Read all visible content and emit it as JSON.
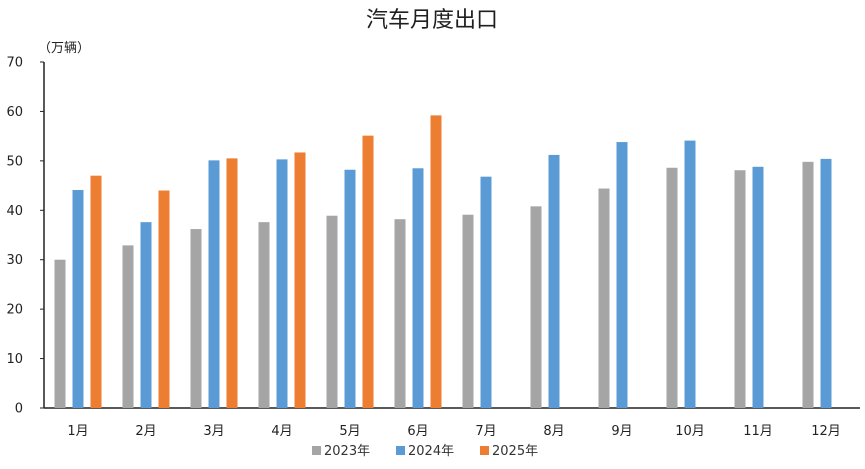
{
  "chart_data": {
    "type": "bar",
    "title": "汽车月度出口",
    "unit_label": "（万辆）",
    "xlabel": "",
    "ylabel": "",
    "categories": [
      "1月",
      "2月",
      "3月",
      "4月",
      "5月",
      "6月",
      "7月",
      "8月",
      "9月",
      "10月",
      "11月",
      "12月"
    ],
    "ylim": [
      0,
      70
    ],
    "yticks": [
      0,
      10,
      20,
      30,
      40,
      50,
      60,
      70
    ],
    "grid": false,
    "legend_position": "bottom",
    "series": [
      {
        "name": "2023年",
        "color": "#a5a5a5",
        "values": [
          30.0,
          32.9,
          36.2,
          37.6,
          38.9,
          38.2,
          39.1,
          40.8,
          44.4,
          48.6,
          48.1,
          49.8
        ]
      },
      {
        "name": "2024年",
        "color": "#5b9bd5",
        "values": [
          44.1,
          37.6,
          50.1,
          50.3,
          48.2,
          48.5,
          46.8,
          51.2,
          53.8,
          54.1,
          48.8,
          50.4
        ]
      },
      {
        "name": "2025年",
        "color": "#ed7d31",
        "values": [
          47.0,
          44.0,
          50.5,
          51.7,
          55.1,
          59.2,
          null,
          null,
          null,
          null,
          null,
          null
        ]
      }
    ]
  }
}
